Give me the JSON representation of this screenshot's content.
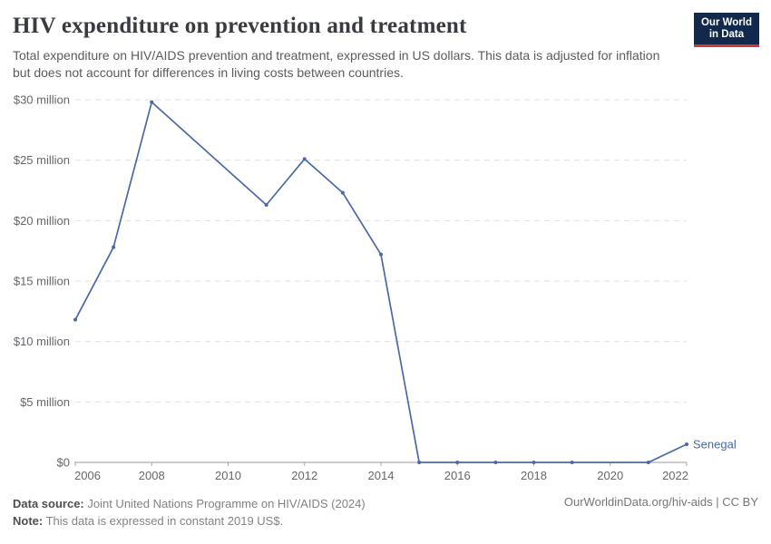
{
  "header": {
    "title": "HIV expenditure on prevention and treatment",
    "subtitle": "Total expenditure on HIV/AIDS prevention and treatment, expressed in US dollars. This data is adjusted for inflation but does not account for differences in living costs between countries.",
    "logo": {
      "line1": "Our World",
      "line2": "in Data"
    }
  },
  "chart_data": {
    "type": "line",
    "title": "HIV expenditure on prevention and treatment",
    "unit": "US$, constant 2019 prices",
    "xlim": [
      2006,
      2022
    ],
    "ylim": [
      0,
      30
    ],
    "x_ticks": [
      2006,
      2008,
      2010,
      2012,
      2014,
      2016,
      2018,
      2020,
      2022
    ],
    "y_ticks": [
      {
        "value": 0,
        "label": "$0"
      },
      {
        "value": 5,
        "label": "$5 million"
      },
      {
        "value": 10,
        "label": "$10 million"
      },
      {
        "value": 15,
        "label": "$15 million"
      },
      {
        "value": 20,
        "label": "$20 million"
      },
      {
        "value": 25,
        "label": "$25 million"
      },
      {
        "value": 30,
        "label": "$30 million"
      }
    ],
    "grid": "horizontal-dashed",
    "legend_position": "end-of-line",
    "series": [
      {
        "name": "Senegal",
        "color": "#4a69a5",
        "points": [
          [
            2006,
            11.8
          ],
          [
            2007,
            17.8
          ],
          [
            2008,
            29.8
          ],
          [
            2011,
            21.3
          ],
          [
            2012,
            25.1
          ],
          [
            2013,
            22.3
          ],
          [
            2014,
            17.2
          ],
          [
            2015,
            0
          ],
          [
            2016,
            0
          ],
          [
            2017,
            0
          ],
          [
            2018,
            0
          ],
          [
            2019,
            0
          ],
          [
            2021,
            0
          ],
          [
            2022,
            1.5
          ]
        ]
      }
    ]
  },
  "footer": {
    "source_label": "Data source:",
    "source_value": " Joint United Nations Programme on HIV/AIDS (2024)",
    "note_label": "Note:",
    "note_value": " This data is expressed in constant 2019 US$.",
    "link": "OurWorldinData.org/hiv-aids | CC BY"
  },
  "colors": {
    "line": "#4a69a5",
    "grid": "#e0e0e0",
    "axis": "#9a9a9a",
    "tick_text": "#66666b",
    "title_text": "#383b40",
    "logo_bg": "#12294d",
    "logo_accent": "#d23a2e"
  }
}
